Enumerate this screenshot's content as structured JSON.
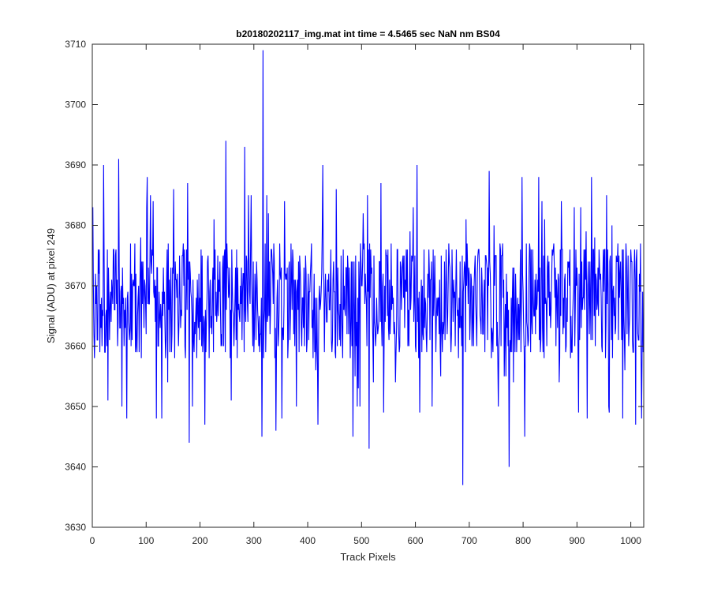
{
  "chart_data": {
    "type": "line",
    "title": "b20180202117_img.mat int time = 4.5465 sec  NaN nm BS04",
    "xlabel": "Track Pixels",
    "ylabel": "Signal (ADU) at pixel 249",
    "xlim": [
      0,
      1024
    ],
    "ylim": [
      3630,
      3710
    ],
    "xticks": [
      0,
      100,
      200,
      300,
      400,
      500,
      600,
      700,
      800,
      900,
      1000
    ],
    "yticks": [
      3630,
      3640,
      3650,
      3660,
      3670,
      3680,
      3690,
      3700,
      3710
    ],
    "grid": false,
    "legend": "none",
    "series": [
      {
        "color": "#0000ff",
        "anchors": [
          {
            "x": 0,
            "y": 3683
          },
          {
            "x": 20,
            "y": 3690
          },
          {
            "x": 48,
            "y": 3691
          },
          {
            "x": 54,
            "y": 3650
          },
          {
            "x": 63,
            "y": 3648
          },
          {
            "x": 100,
            "y": 3683
          },
          {
            "x": 112,
            "y": 3684
          },
          {
            "x": 118,
            "y": 3648
          },
          {
            "x": 128,
            "y": 3648
          },
          {
            "x": 176,
            "y": 3687
          },
          {
            "x": 179,
            "y": 3644
          },
          {
            "x": 208,
            "y": 3647
          },
          {
            "x": 247,
            "y": 3694
          },
          {
            "x": 257,
            "y": 3651
          },
          {
            "x": 282,
            "y": 3693
          },
          {
            "x": 314,
            "y": 3645
          },
          {
            "x": 316,
            "y": 3709
          },
          {
            "x": 340,
            "y": 3646
          },
          {
            "x": 427,
            "y": 3690
          },
          {
            "x": 483,
            "y": 3645
          },
          {
            "x": 513,
            "y": 3643
          },
          {
            "x": 602,
            "y": 3690
          },
          {
            "x": 630,
            "y": 3650
          },
          {
            "x": 687,
            "y": 3637
          },
          {
            "x": 736,
            "y": 3689
          },
          {
            "x": 773,
            "y": 3640
          },
          {
            "x": 802,
            "y": 3645
          },
          {
            "x": 828,
            "y": 3688
          },
          {
            "x": 918,
            "y": 3648
          },
          {
            "x": 926,
            "y": 3688
          },
          {
            "x": 954,
            "y": 3685
          },
          {
            "x": 1008,
            "y": 3647
          },
          {
            "x": 1019,
            "y": 3648
          },
          {
            "x": 1023,
            "y": 3660
          }
        ],
        "mean": 3667.5,
        "spread": 7
      }
    ]
  }
}
